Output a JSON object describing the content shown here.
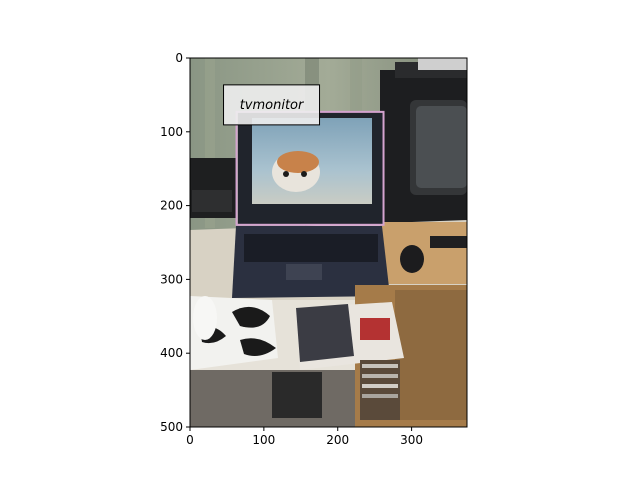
{
  "figure": {
    "x_ticks": [
      "0",
      "100",
      "200",
      "300"
    ],
    "y_ticks": [
      "0",
      "100",
      "200",
      "300",
      "400",
      "500"
    ]
  },
  "image": {
    "width_units": 375,
    "height_units": 500
  },
  "detections": [
    {
      "label": "tvmonitor",
      "box": {
        "x_min": 63,
        "y_min": 73,
        "x_max": 262,
        "y_max": 226
      },
      "box_color": "#d4a3cf"
    }
  ],
  "x_tick_values": [
    0,
    100,
    200,
    300
  ],
  "y_tick_values": [
    0,
    100,
    200,
    300,
    400,
    500
  ]
}
